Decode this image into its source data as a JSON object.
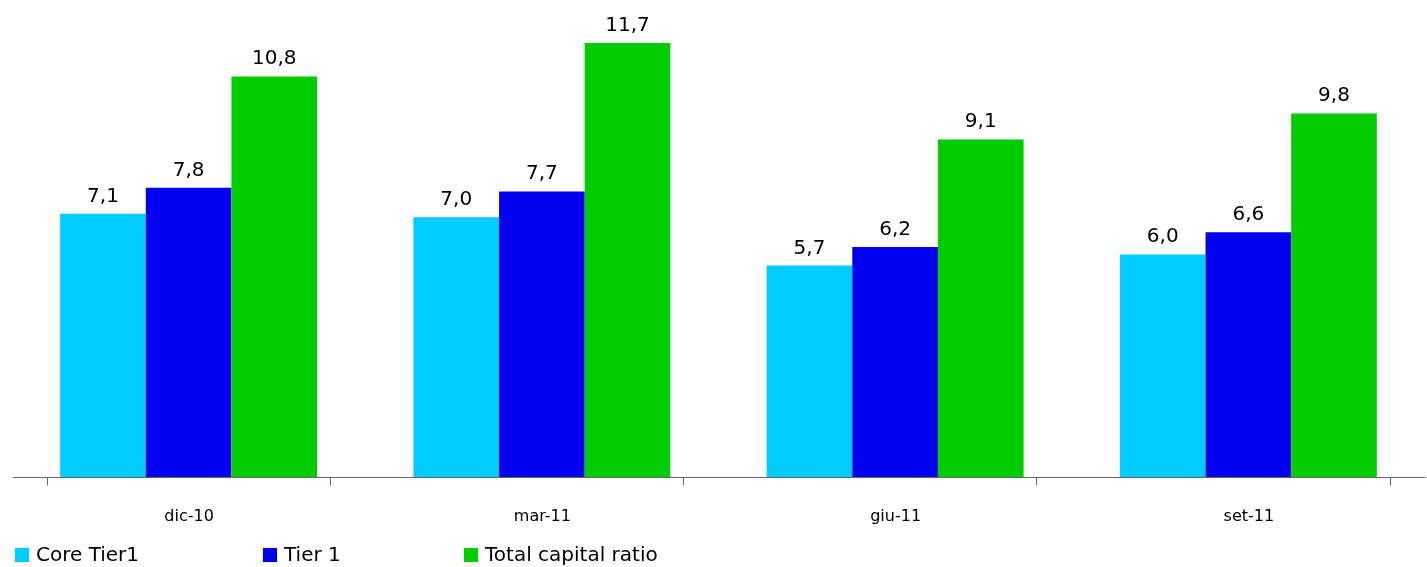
{
  "chart_data": {
    "type": "bar",
    "categories": [
      "dic-10",
      "mar-11",
      "giu-11",
      "set-11"
    ],
    "series": [
      {
        "name": "Core Tier1",
        "color": "#00ccff",
        "values": [
          7.1,
          7.0,
          5.7,
          6.0
        ],
        "value_labels": [
          "7,1",
          "7,0",
          "5,7",
          "6,0"
        ]
      },
      {
        "name": "Tier 1",
        "color": "#0000ee",
        "values": [
          7.8,
          7.7,
          6.2,
          6.6
        ],
        "value_labels": [
          "7,8",
          "7,7",
          "6,2",
          "6,6"
        ]
      },
      {
        "name": "Total capital ratio",
        "color": "#00cc00",
        "values": [
          10.8,
          11.7,
          9.1,
          9.8
        ],
        "value_labels": [
          "10,8",
          "11,7",
          "9,1",
          "9,8"
        ]
      }
    ],
    "legend": "bottom",
    "grid": false,
    "tick_labels": "x"
  }
}
